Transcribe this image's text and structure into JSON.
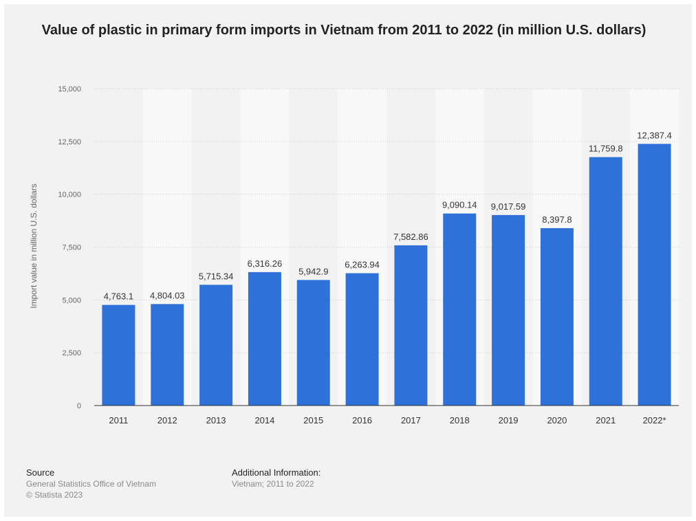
{
  "chart_data": {
    "type": "bar",
    "title": "Value of plastic in primary form imports in Vietnam from 2011 to 2022 (in million U.S. dollars)",
    "ylabel": "Import value in million U.S. dollars",
    "xlabel": "",
    "categories": [
      "2011",
      "2012",
      "2013",
      "2014",
      "2015",
      "2016",
      "2017",
      "2018",
      "2019",
      "2020",
      "2021",
      "2022*"
    ],
    "values": [
      4763.1,
      4804.03,
      5715.34,
      6316.26,
      5942.9,
      6263.94,
      7582.86,
      9090.14,
      9017.59,
      8397.8,
      11759.8,
      12387.4
    ],
    "value_labels": [
      "4,763.1",
      "4,804.03",
      "5,715.34",
      "6,316.26",
      "5,942.9",
      "6,263.94",
      "7,582.86",
      "9,090.14",
      "9,017.59",
      "8,397.8",
      "11,759.8",
      "12,387.4"
    ],
    "ylim": [
      0,
      15000
    ],
    "yticks": [
      0,
      2500,
      5000,
      7500,
      10000,
      12500,
      15000
    ],
    "ytick_labels": [
      "0",
      "2,500",
      "5,000",
      "7,500",
      "10,000",
      "12,500",
      "15,000"
    ],
    "grid": true,
    "bar_color": "#2e72d9"
  },
  "footer": {
    "source_heading": "Source",
    "source_lines": [
      "General Statistics Office of Vietnam",
      "© Statista 2023"
    ],
    "info_heading": "Additional Information:",
    "info_lines": [
      "Vietnam; 2011 to 2022"
    ]
  }
}
